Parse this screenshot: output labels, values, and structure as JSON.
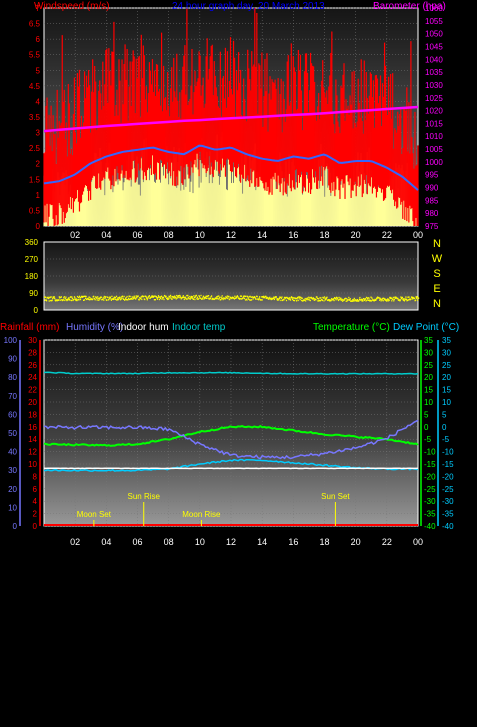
{
  "colors": {
    "wind": "#ff0000",
    "gust": "#ffff99",
    "wind_avg": "#3366ff",
    "barometer": "#ff00ff",
    "title": "#0000ff",
    "direction": "#ffff00",
    "rain": "#ff0000",
    "humidity": "#7777ff",
    "indoor_hum": "#ffffff",
    "indoor_temp": "#00cccc",
    "temperature": "#00ff00",
    "dew_point": "#00ccff",
    "sun": "#ffff00",
    "moon": "#ffff00"
  },
  "panel1": {
    "left_label": "Windspeed (m/s)",
    "title": "24 hour graph day, 20 March 2013",
    "right_label": "Barometer (hpa)",
    "left_ticks": [
      "0",
      "0.5",
      "1",
      "1.5",
      "2",
      "2.5",
      "3",
      "3.5",
      "4",
      "4.5",
      "5",
      "5.5",
      "6",
      "6.5",
      "7"
    ],
    "right_ticks": [
      "975",
      "980",
      "985",
      "990",
      "995",
      "1000",
      "1005",
      "1010",
      "1015",
      "1020",
      "1025",
      "1030",
      "1035",
      "1040",
      "1045",
      "1050",
      "1055",
      "1060"
    ],
    "x_ticks": [
      "02",
      "04",
      "06",
      "08",
      "10",
      "12",
      "14",
      "16",
      "18",
      "20",
      "22",
      "00"
    ]
  },
  "panel2": {
    "left_ticks": [
      "0",
      "90",
      "180",
      "270",
      "360"
    ],
    "compass": [
      "N",
      "W",
      "S",
      "E",
      "N"
    ]
  },
  "panel3": {
    "rain_label": "Rainfall (mm)",
    "humidity_label": "Humidity (%)",
    "indoor_hum_label": "Indoor hum",
    "indoor_temp_label": "Indoor temp",
    "temperature_label": "Temperature (°C)",
    "dew_point_label": "Dew Point (°C)",
    "humidity_ticks": [
      "0",
      "10",
      "20",
      "30",
      "40",
      "50",
      "60",
      "70",
      "80",
      "90",
      "100"
    ],
    "rain_ticks": [
      "0",
      "2",
      "4",
      "6",
      "8",
      "10",
      "12",
      "14",
      "16",
      "18",
      "20",
      "22",
      "24",
      "26",
      "28",
      "30"
    ],
    "temp_ticks_left": [
      "-40",
      "-35",
      "-30",
      "-25",
      "-20",
      "-15",
      "-10",
      "-5",
      "0",
      "5",
      "10",
      "15",
      "20",
      "25",
      "30",
      "35"
    ],
    "temp_ticks_right": [
      "-40",
      "-35",
      "-30",
      "-25",
      "-20",
      "-15",
      "-10",
      "-5",
      "0",
      "5",
      "10",
      "15",
      "20",
      "25",
      "30",
      "35"
    ],
    "x_ticks": [
      "02",
      "04",
      "06",
      "08",
      "10",
      "12",
      "14",
      "16",
      "18",
      "20",
      "22",
      "00"
    ],
    "events": [
      {
        "label": "Moon Set",
        "hour": 3.2
      },
      {
        "label": "Sun Rise",
        "hour": 6.4
      },
      {
        "label": "Moon Rise",
        "hour": 10.1
      },
      {
        "label": "Sun Set",
        "hour": 18.7
      }
    ]
  },
  "chart_data": [
    {
      "type": "line",
      "title": "24 hour graph day, 20 March 2013",
      "ylabel": "Windspeed (m/s)",
      "y2label": "Barometer (hpa)",
      "xlim": [
        0,
        24
      ],
      "ylim": [
        0,
        7
      ],
      "y2lim": [
        975,
        1060
      ],
      "grid": true,
      "x": [
        0,
        1,
        2,
        3,
        4,
        5,
        6,
        7,
        8,
        9,
        10,
        11,
        12,
        13,
        14,
        15,
        16,
        17,
        18,
        19,
        20,
        21,
        22,
        23,
        24
      ],
      "series": [
        {
          "name": "Windspeed",
          "values": [
            1.9,
            2.0,
            2.3,
            2.8,
            3.1,
            3.3,
            3.4,
            3.5,
            3.3,
            3.2,
            3.6,
            3.4,
            3.5,
            3.2,
            3.0,
            2.9,
            3.1,
            3.0,
            3.2,
            2.8,
            2.9,
            2.9,
            2.6,
            2.2,
            1.6
          ]
        },
        {
          "name": "Barometer",
          "values": [
            1012,
            1012.5,
            1013,
            1013.5,
            1014,
            1014.4,
            1014.8,
            1015.2,
            1015.6,
            1016,
            1016.3,
            1016.7,
            1017,
            1017.3,
            1017.6,
            1018,
            1018.3,
            1018.6,
            1019,
            1019.4,
            1019.8,
            1020.2,
            1020.6,
            1021,
            1021.4
          ]
        }
      ]
    },
    {
      "type": "scatter",
      "xlim": [
        0,
        24
      ],
      "ylim": [
        0,
        360
      ],
      "x": [
        0,
        2,
        4,
        6,
        8,
        10,
        12,
        14,
        16,
        18,
        20,
        22,
        24
      ],
      "series": [
        {
          "values": [
            62,
            65,
            66,
            67,
            70,
            70,
            68,
            66,
            62,
            62,
            60,
            62,
            64
          ]
        }
      ]
    },
    {
      "type": "line",
      "ylabel": "Humidity (%)",
      "y2label": "Temperature (°C)",
      "xlim": [
        0,
        24
      ],
      "ylim": [
        0,
        100
      ],
      "y2lim": [
        -40,
        35
      ],
      "grid": true,
      "x": [
        0,
        2,
        4,
        6,
        8,
        10,
        12,
        14,
        16,
        18,
        20,
        22,
        24
      ],
      "series": [
        {
          "name": "Humidity",
          "values": [
            53,
            53,
            53,
            53,
            52,
            44,
            38,
            37,
            37,
            39,
            42,
            47,
            57
          ]
        },
        {
          "name": "Indoor hum",
          "values": [
            31,
            31,
            31,
            31,
            31,
            31,
            31,
            31,
            31,
            31,
            31,
            31,
            31
          ]
        },
        {
          "name": "Indoor temp",
          "values": [
            22,
            21.5,
            21.5,
            21.5,
            21.8,
            21.8,
            21.8,
            21.6,
            21.4,
            21.4,
            21.4,
            21.4,
            21.4
          ]
        },
        {
          "name": "Temperature",
          "values": [
            -7,
            -7.3,
            -7.5,
            -7,
            -5,
            -2,
            0,
            0,
            -1.5,
            -3,
            -4,
            -5,
            -7
          ]
        },
        {
          "name": "Dew Point",
          "values": [
            -17.5,
            -17.6,
            -17.6,
            -17.6,
            -17,
            -15,
            -13.5,
            -13.5,
            -14.5,
            -15.5,
            -16.5,
            -17,
            -17
          ]
        },
        {
          "name": "Rainfall (mm)",
          "values": [
            0,
            0,
            0,
            0,
            0,
            0,
            0,
            0,
            0,
            0,
            0,
            0,
            0
          ]
        }
      ]
    }
  ]
}
